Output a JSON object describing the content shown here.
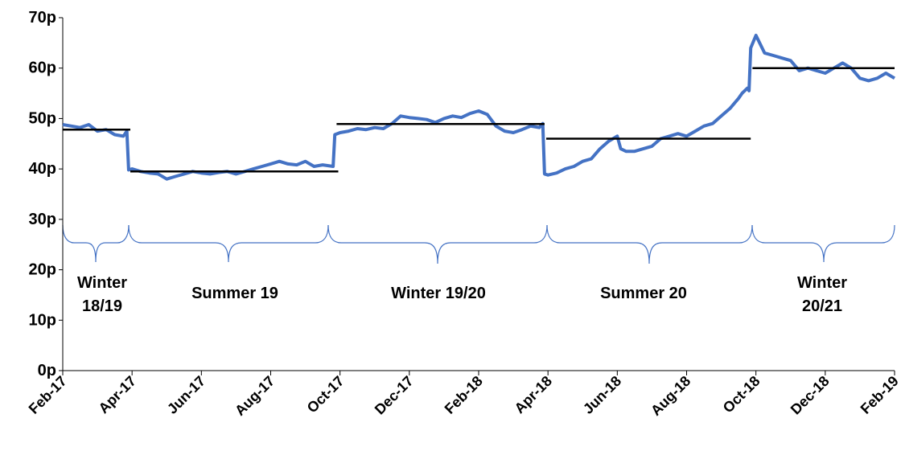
{
  "chart_data": {
    "type": "line",
    "xlim": [
      0,
      24
    ],
    "xticks": [
      {
        "value": 0,
        "label": "Feb-17"
      },
      {
        "value": 2,
        "label": "Apr-17"
      },
      {
        "value": 4,
        "label": "Jun-17"
      },
      {
        "value": 6,
        "label": "Aug-17"
      },
      {
        "value": 8,
        "label": "Oct-17"
      },
      {
        "value": 10,
        "label": "Dec-17"
      },
      {
        "value": 12,
        "label": "Feb-18"
      },
      {
        "value": 14,
        "label": "Apr-18"
      },
      {
        "value": 16,
        "label": "Jun-18"
      },
      {
        "value": 18,
        "label": "Aug-18"
      },
      {
        "value": 20,
        "label": "Oct-18"
      },
      {
        "value": 22,
        "label": "Dec-18"
      },
      {
        "value": 24,
        "label": "Feb-19"
      }
    ],
    "ylim": [
      0,
      70
    ],
    "yticks": [
      {
        "value": 0,
        "label": "0p"
      },
      {
        "value": 10,
        "label": "10p"
      },
      {
        "value": 20,
        "label": "20p"
      },
      {
        "value": 30,
        "label": "30p"
      },
      {
        "value": 40,
        "label": "40p"
      },
      {
        "value": 50,
        "label": "50p"
      },
      {
        "value": 60,
        "label": "60p"
      },
      {
        "value": 70,
        "label": "70p"
      }
    ],
    "series": [
      {
        "color": "#4472c4",
        "width": 4,
        "x": [
          0,
          0.25,
          0.5,
          0.75,
          1.0,
          1.25,
          1.5,
          1.75,
          1.85,
          1.9,
          2.0,
          2.25,
          2.5,
          2.75,
          3.0,
          3.25,
          3.5,
          3.75,
          4.0,
          4.25,
          4.5,
          4.75,
          5.0,
          5.25,
          5.5,
          5.75,
          6.0,
          6.25,
          6.5,
          6.75,
          7.0,
          7.25,
          7.5,
          7.8,
          7.85,
          8.0,
          8.25,
          8.5,
          8.75,
          9.0,
          9.25,
          9.5,
          9.75,
          10.0,
          10.25,
          10.5,
          10.75,
          11.0,
          11.25,
          11.5,
          11.75,
          12.0,
          12.25,
          12.5,
          12.75,
          13.0,
          13.25,
          13.5,
          13.75,
          13.85,
          13.9,
          14.0,
          14.25,
          14.5,
          14.75,
          15.0,
          15.25,
          15.5,
          15.75,
          16.0,
          16.1,
          16.25,
          16.5,
          16.75,
          17.0,
          17.25,
          17.5,
          17.75,
          18.0,
          18.25,
          18.5,
          18.75,
          19.0,
          19.25,
          19.5,
          19.6,
          19.75,
          19.8,
          19.85,
          20.0,
          20.25,
          20.5,
          20.75,
          21.0,
          21.25,
          21.5,
          21.75,
          22.0,
          22.25,
          22.5,
          22.75,
          23.0,
          23.25,
          23.5,
          23.75,
          24.0
        ],
        "values": [
          48.8,
          48.5,
          48.2,
          48.8,
          47.5,
          47.8,
          46.8,
          46.5,
          47.5,
          39.8,
          40.0,
          39.5,
          39.2,
          39.0,
          38.0,
          38.5,
          39.0,
          39.5,
          39.2,
          39.0,
          39.3,
          39.5,
          39.0,
          39.5,
          40.0,
          40.5,
          41.0,
          41.5,
          41.0,
          40.8,
          41.5,
          40.5,
          40.8,
          40.5,
          46.8,
          47.2,
          47.5,
          48.0,
          47.8,
          48.2,
          48.0,
          49.0,
          50.5,
          50.2,
          50.0,
          49.8,
          49.2,
          50.0,
          50.5,
          50.2,
          51.0,
          51.5,
          50.8,
          48.5,
          47.5,
          47.2,
          47.8,
          48.5,
          48.2,
          49.0,
          39.0,
          38.8,
          39.2,
          40.0,
          40.5,
          41.5,
          42.0,
          44.0,
          45.5,
          46.5,
          44.0,
          43.5,
          43.5,
          44.0,
          44.5,
          46.0,
          46.5,
          47.0,
          46.5,
          47.5,
          48.5,
          49.0,
          50.5,
          52.0,
          54.0,
          55.0,
          56.0,
          55.5,
          64.0,
          66.5,
          63.0,
          62.5,
          62.0,
          61.5,
          59.5,
          60.0,
          59.5,
          59.0,
          60.0,
          61.0,
          60.0,
          58.0,
          57.5,
          58.0,
          59.0,
          58.0
        ]
      },
      {
        "color": "#000000",
        "width": 2.5,
        "x": [
          0,
          1.95,
          1.95,
          1.95,
          7.95,
          7.95,
          7.9,
          13.9,
          13.9,
          13.95,
          19.85,
          19.85,
          19.9,
          24
        ],
        "values": [
          47.8,
          47.8,
          null,
          39.5,
          39.5,
          null,
          48.9,
          48.9,
          null,
          46.0,
          46.0,
          null,
          60.0,
          60.0
        ]
      }
    ],
    "annotations": [
      "Winter 18/19",
      "Summer 19",
      "Winter 19/20",
      "Summer 20",
      "Winter 20/21"
    ]
  }
}
